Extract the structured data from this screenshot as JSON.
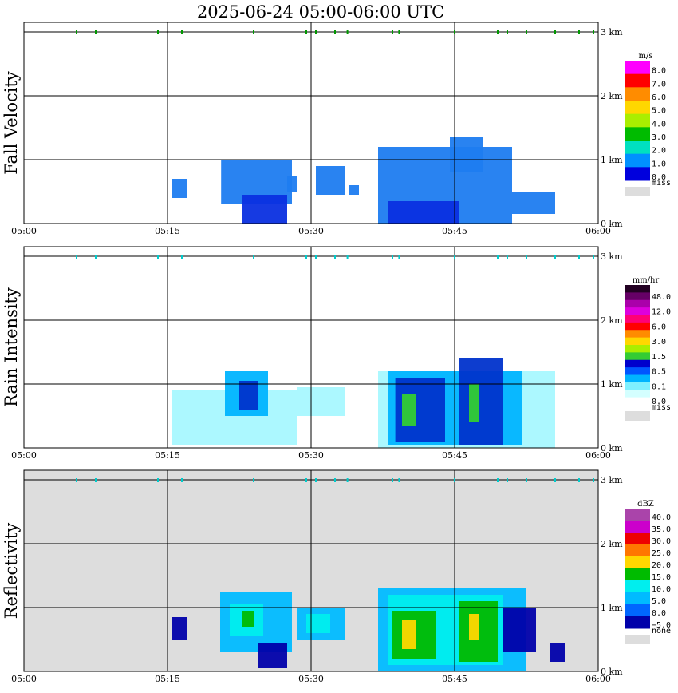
{
  "title": "2025-06-24   05:00-06:00 UTC",
  "colors": {
    "frame": "#000000",
    "grid": "#000000",
    "marker_green": "#009900",
    "marker_cyan": "#00cccc",
    "missing": "#dddddd"
  },
  "chart_data": [
    {
      "type": "heatmap",
      "ylabel": "Fall Velocity",
      "unit": "m/s",
      "x_ticks": [
        "05:00",
        "05:15",
        "05:30",
        "05:45",
        "06:00"
      ],
      "y_ticks": [
        "0 km",
        "1 km",
        "2 km",
        "3 km"
      ],
      "ylim": [
        0,
        3
      ],
      "missing_background": false,
      "marker_color": "marker_green",
      "colorbar": {
        "labels": [
          "8.0",
          "7.0",
          "6.0",
          "5.0",
          "4.0",
          "3.0",
          "2.0",
          "1.0",
          "0.0"
        ],
        "colors": [
          "#ff00ff",
          "#ff0000",
          "#ff8c00",
          "#ffd700",
          "#aaee00",
          "#00bb00",
          "#00e0c0",
          "#0090ff",
          "#0000dd"
        ],
        "missing_label": "miss"
      },
      "echoes": [
        {
          "t0": 20.6,
          "t1": 28.0,
          "z0": 0.3,
          "z1": 1.0,
          "color": "#1e7cf0"
        },
        {
          "t0": 22.8,
          "t1": 27.5,
          "z0": 0.0,
          "z1": 0.45,
          "color": "#0a2fe0"
        },
        {
          "t0": 15.5,
          "t1": 17.0,
          "z0": 0.4,
          "z1": 0.7,
          "color": "#1e7cf0"
        },
        {
          "t0": 27.5,
          "t1": 28.5,
          "z0": 0.5,
          "z1": 0.75,
          "color": "#1e7cf0"
        },
        {
          "t0": 30.5,
          "t1": 33.5,
          "z0": 0.45,
          "z1": 0.9,
          "color": "#1e7cf0"
        },
        {
          "t0": 34.0,
          "t1": 35.0,
          "z0": 0.45,
          "z1": 0.6,
          "color": "#1e7cf0"
        },
        {
          "t0": 37.0,
          "t1": 51.0,
          "z0": 0.0,
          "z1": 1.2,
          "color": "#1e7cf0"
        },
        {
          "t0": 44.5,
          "t1": 48.0,
          "z0": 0.8,
          "z1": 1.35,
          "color": "#1e7cf0"
        },
        {
          "t0": 51.0,
          "t1": 55.5,
          "z0": 0.15,
          "z1": 0.5,
          "color": "#1e7cf0"
        },
        {
          "t0": 38.0,
          "t1": 45.5,
          "z0": 0.0,
          "z1": 0.35,
          "color": "#0a2fe0"
        }
      ],
      "markers_t": [
        5.5,
        7.5,
        14.0,
        16.5,
        24.0,
        29.5,
        30.5,
        32.5,
        33.8,
        38.5,
        39.2,
        45.0,
        49.5,
        50.5,
        52.5,
        55.5,
        58.0,
        59.5
      ]
    },
    {
      "type": "heatmap",
      "ylabel": "Rain Intensity",
      "unit": "mm/hr",
      "x_ticks": [
        "05:00",
        "05:15",
        "05:30",
        "05:45",
        "06:00"
      ],
      "y_ticks": [
        "0 km",
        "1 km",
        "2 km",
        "3 km"
      ],
      "ylim": [
        0,
        3
      ],
      "missing_background": false,
      "marker_color": "marker_cyan",
      "colorbar": {
        "labels": [
          "48.0",
          "12.0",
          "6.0",
          "3.0",
          "1.5",
          "0.5",
          "0.1",
          "0.0"
        ],
        "colors": [
          "#220022",
          "#660066",
          "#aa00aa",
          "#dd00dd",
          "#ff0077",
          "#ff0000",
          "#ff8c00",
          "#ffd700",
          "#aaee00",
          "#33cc33",
          "#0000cc",
          "#0055ff",
          "#00b4ff",
          "#7ff0ff",
          "#d4ffff",
          "#ffffff"
        ],
        "missing_label": "miss"
      },
      "echoes": [
        {
          "t0": 15.5,
          "t1": 28.5,
          "z0": 0.05,
          "z1": 0.9,
          "color": "#a8f8ff"
        },
        {
          "t0": 21.0,
          "t1": 25.5,
          "z0": 0.5,
          "z1": 1.2,
          "color": "#00b4ff"
        },
        {
          "t0": 22.5,
          "t1": 24.5,
          "z0": 0.6,
          "z1": 1.05,
          "color": "#0033cc"
        },
        {
          "t0": 28.5,
          "t1": 33.5,
          "z0": 0.5,
          "z1": 0.95,
          "color": "#a8f8ff"
        },
        {
          "t0": 37.0,
          "t1": 55.5,
          "z0": 0.0,
          "z1": 1.2,
          "color": "#a8f8ff"
        },
        {
          "t0": 38.0,
          "t1": 52.0,
          "z0": 0.05,
          "z1": 1.2,
          "color": "#00b4ff"
        },
        {
          "t0": 38.8,
          "t1": 44.0,
          "z0": 0.1,
          "z1": 1.1,
          "color": "#0033cc"
        },
        {
          "t0": 39.5,
          "t1": 41.0,
          "z0": 0.35,
          "z1": 0.85,
          "color": "#33cc33"
        },
        {
          "t0": 45.5,
          "t1": 50.0,
          "z0": 0.05,
          "z1": 1.4,
          "color": "#0033cc"
        },
        {
          "t0": 46.5,
          "t1": 47.5,
          "z0": 0.4,
          "z1": 1.0,
          "color": "#33cc33"
        }
      ],
      "markers_t": [
        5.5,
        7.5,
        14.0,
        16.5,
        24.0,
        29.5,
        30.5,
        32.5,
        33.8,
        38.5,
        39.2,
        45.0,
        49.5,
        50.5,
        52.5,
        55.5,
        58.0,
        59.5
      ]
    },
    {
      "type": "heatmap",
      "ylabel": "Reflectivity",
      "unit": "dBZ",
      "x_ticks": [
        "05:00",
        "05:15",
        "05:30",
        "05:45",
        "06:00"
      ],
      "y_ticks": [
        "0 km",
        "1 km",
        "2 km",
        "3 km"
      ],
      "ylim": [
        0,
        3
      ],
      "missing_background": true,
      "marker_color": "marker_cyan",
      "colorbar": {
        "labels": [
          "40.0",
          "35.0",
          "30.0",
          "25.0",
          "20.0",
          "15.0",
          "10.0",
          "5.0",
          "0.0",
          "−5.0"
        ],
        "colors": [
          "#aa44aa",
          "#cc00cc",
          "#ee0000",
          "#ff7700",
          "#ffd700",
          "#00bb00",
          "#00eeee",
          "#00bbff",
          "#0066ff",
          "#0000aa"
        ],
        "missing_label": "none"
      },
      "echoes": [
        {
          "t0": 20.5,
          "t1": 28.0,
          "z0": 0.3,
          "z1": 1.25,
          "color": "#00bbff"
        },
        {
          "t0": 21.5,
          "t1": 25.0,
          "z0": 0.55,
          "z1": 1.05,
          "color": "#00eeee"
        },
        {
          "t0": 22.8,
          "t1": 24.0,
          "z0": 0.7,
          "z1": 0.95,
          "color": "#00bb00"
        },
        {
          "t0": 24.5,
          "t1": 27.5,
          "z0": 0.05,
          "z1": 0.45,
          "color": "#0000aa"
        },
        {
          "t0": 15.5,
          "t1": 17.0,
          "z0": 0.5,
          "z1": 0.85,
          "color": "#0000aa"
        },
        {
          "t0": 28.5,
          "t1": 33.5,
          "z0": 0.5,
          "z1": 1.0,
          "color": "#00bbff"
        },
        {
          "t0": 29.5,
          "t1": 32.0,
          "z0": 0.6,
          "z1": 0.9,
          "color": "#00eeee"
        },
        {
          "t0": 37.0,
          "t1": 52.5,
          "z0": 0.0,
          "z1": 1.3,
          "color": "#00bbff"
        },
        {
          "t0": 38.0,
          "t1": 50.0,
          "z0": 0.1,
          "z1": 1.2,
          "color": "#00eeee"
        },
        {
          "t0": 38.5,
          "t1": 43.0,
          "z0": 0.2,
          "z1": 0.95,
          "color": "#00bb00"
        },
        {
          "t0": 39.5,
          "t1": 41.0,
          "z0": 0.35,
          "z1": 0.8,
          "color": "#ffd700"
        },
        {
          "t0": 45.5,
          "t1": 49.5,
          "z0": 0.15,
          "z1": 1.1,
          "color": "#00bb00"
        },
        {
          "t0": 46.5,
          "t1": 47.5,
          "z0": 0.5,
          "z1": 0.9,
          "color": "#ffd700"
        },
        {
          "t0": 50.0,
          "t1": 53.5,
          "z0": 0.3,
          "z1": 1.0,
          "color": "#0000aa"
        },
        {
          "t0": 55.0,
          "t1": 56.5,
          "z0": 0.15,
          "z1": 0.45,
          "color": "#0000aa"
        }
      ],
      "markers_t": [
        5.5,
        7.5,
        14.0,
        16.5,
        24.0,
        29.5,
        30.5,
        32.5,
        33.8,
        38.5,
        39.2,
        45.0,
        49.5,
        50.5,
        52.5,
        55.5,
        58.0,
        59.5
      ]
    }
  ]
}
